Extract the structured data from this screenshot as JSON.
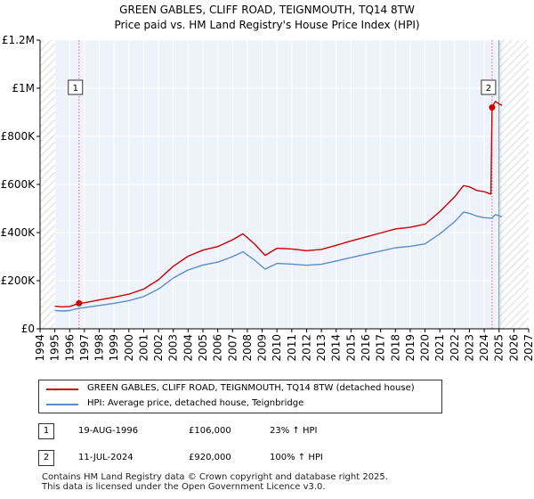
{
  "header": {
    "title": "GREEN GABLES, CLIFF ROAD, TEIGNMOUTH, TQ14 8TW",
    "subtitle": "Price paid vs. HM Land Registry's House Price Index (HPI)"
  },
  "chart_data": {
    "type": "line",
    "title": "GREEN GABLES, CLIFF ROAD, TEIGNMOUTH, TQ14 8TW",
    "subtitle": "Price paid vs. HM Land Registry's House Price Index (HPI)",
    "xlabel": "",
    "ylabel": "",
    "xlim": [
      1994,
      2027
    ],
    "ylim": [
      0,
      1200000
    ],
    "x_ticks": [
      "1994",
      "1995",
      "1996",
      "1997",
      "1998",
      "1999",
      "2000",
      "2001",
      "2002",
      "2003",
      "2004",
      "2005",
      "2006",
      "2007",
      "2008",
      "2009",
      "2010",
      "2011",
      "2012",
      "2013",
      "2014",
      "2015",
      "2016",
      "2017",
      "2018",
      "2019",
      "2020",
      "2021",
      "2022",
      "2023",
      "2024",
      "2025",
      "2026",
      "2027"
    ],
    "y_ticks": [
      {
        "value": 0,
        "label": "£0"
      },
      {
        "value": 200000,
        "label": "£200K"
      },
      {
        "value": 400000,
        "label": "£400K"
      },
      {
        "value": 600000,
        "label": "£600K"
      },
      {
        "value": 800000,
        "label": "£800K"
      },
      {
        "value": 1000000,
        "label": "£1M"
      },
      {
        "value": 1200000,
        "label": "£1.2M"
      }
    ],
    "data_start": 1995.0,
    "data_end": 2025.2,
    "hatched_before": 1995.0,
    "hatched_after": 2025.0,
    "grid": true,
    "series": [
      {
        "name": "GREEN GABLES, CLIFF ROAD, TEIGNMOUTH, TQ14 8TW (detached house)",
        "color": "#cc0000",
        "points": [
          [
            1995.0,
            94000
          ],
          [
            1995.5,
            91000
          ],
          [
            1996.0,
            93000
          ],
          [
            1996.63,
            106000
          ],
          [
            1997.0,
            108000
          ],
          [
            1998.0,
            120000
          ],
          [
            1999.0,
            131000
          ],
          [
            2000.0,
            144000
          ],
          [
            2001.0,
            165000
          ],
          [
            2002.0,
            204000
          ],
          [
            2003.0,
            260000
          ],
          [
            2004.0,
            302000
          ],
          [
            2005.0,
            327000
          ],
          [
            2006.0,
            342000
          ],
          [
            2007.0,
            370000
          ],
          [
            2007.7,
            395000
          ],
          [
            2008.5,
            352000
          ],
          [
            2009.2,
            305000
          ],
          [
            2010.0,
            335000
          ],
          [
            2011.0,
            332000
          ],
          [
            2012.0,
            325000
          ],
          [
            2013.0,
            330000
          ],
          [
            2014.0,
            347000
          ],
          [
            2015.0,
            365000
          ],
          [
            2016.0,
            382000
          ],
          [
            2017.0,
            398000
          ],
          [
            2018.0,
            415000
          ],
          [
            2019.0,
            422000
          ],
          [
            2020.0,
            435000
          ],
          [
            2021.0,
            487000
          ],
          [
            2022.0,
            548000
          ],
          [
            2022.6,
            595000
          ],
          [
            2023.0,
            590000
          ],
          [
            2023.5,
            575000
          ],
          [
            2024.0,
            570000
          ],
          [
            2024.45,
            560000
          ],
          [
            2024.53,
            920000
          ],
          [
            2024.75,
            945000
          ],
          [
            2025.0,
            935000
          ],
          [
            2025.2,
            928000
          ]
        ]
      },
      {
        "name": "HPI: Average price, detached house, Teignbridge",
        "color": "#5b8ec9",
        "points": [
          [
            1995.0,
            76000
          ],
          [
            1995.5,
            74000
          ],
          [
            1996.0,
            76000
          ],
          [
            1996.63,
            86000
          ],
          [
            1997.0,
            88000
          ],
          [
            1998.0,
            97000
          ],
          [
            1999.0,
            106000
          ],
          [
            2000.0,
            117000
          ],
          [
            2001.0,
            134000
          ],
          [
            2002.0,
            165000
          ],
          [
            2003.0,
            211000
          ],
          [
            2004.0,
            245000
          ],
          [
            2005.0,
            265000
          ],
          [
            2006.0,
            277000
          ],
          [
            2007.0,
            300000
          ],
          [
            2007.7,
            320000
          ],
          [
            2008.5,
            285000
          ],
          [
            2009.2,
            248000
          ],
          [
            2010.0,
            272000
          ],
          [
            2011.0,
            269000
          ],
          [
            2012.0,
            264000
          ],
          [
            2013.0,
            268000
          ],
          [
            2014.0,
            282000
          ],
          [
            2015.0,
            296000
          ],
          [
            2016.0,
            310000
          ],
          [
            2017.0,
            323000
          ],
          [
            2018.0,
            337000
          ],
          [
            2019.0,
            343000
          ],
          [
            2020.0,
            353000
          ],
          [
            2021.0,
            395000
          ],
          [
            2022.0,
            445000
          ],
          [
            2022.6,
            485000
          ],
          [
            2023.0,
            480000
          ],
          [
            2023.5,
            468000
          ],
          [
            2024.0,
            462000
          ],
          [
            2024.53,
            460000
          ],
          [
            2024.75,
            475000
          ],
          [
            2025.0,
            470000
          ],
          [
            2025.2,
            465000
          ]
        ]
      }
    ],
    "annotations": [
      {
        "label": "1",
        "x": 1996.63,
        "y": 106000,
        "box_y": 1000000
      },
      {
        "label": "2",
        "x": 2024.53,
        "y": 920000,
        "box_y": 1000000
      }
    ]
  },
  "legend": {
    "items": [
      {
        "label": "GREEN GABLES, CLIFF ROAD, TEIGNMOUTH, TQ14 8TW (detached house)",
        "color": "#cc0000"
      },
      {
        "label": "HPI: Average price, detached house, Teignbridge",
        "color": "#5b8ec9"
      }
    ]
  },
  "sales": [
    {
      "num": "1",
      "date": "19-AUG-1996",
      "price": "£106,000",
      "hpi": "23% ↑ HPI"
    },
    {
      "num": "2",
      "date": "11-JUL-2024",
      "price": "£920,000",
      "hpi": "100% ↑ HPI"
    }
  ],
  "footer": {
    "line1": "Contains HM Land Registry data © Crown copyright and database right 2025.",
    "line2": "This data is licensed under the Open Government Licence v3.0."
  }
}
